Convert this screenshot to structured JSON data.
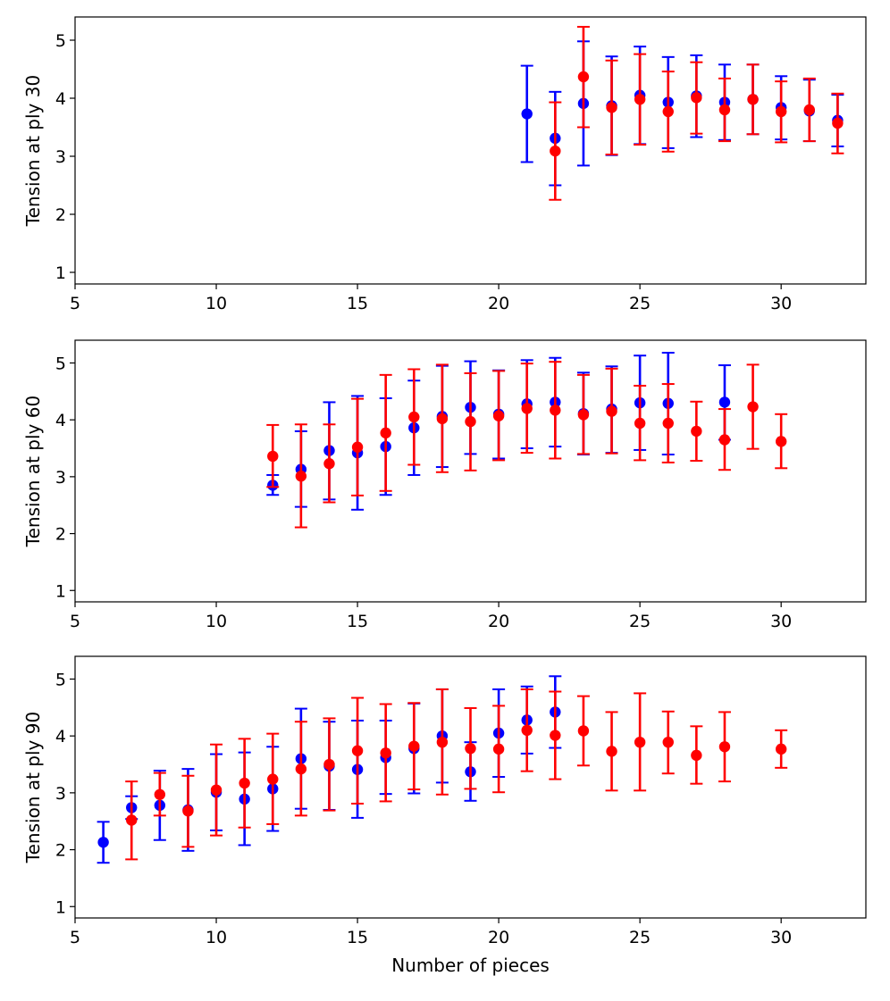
{
  "chart_data": [
    {
      "type": "scatter",
      "title": "",
      "xlabel": "",
      "ylabel": "Tension at ply 30",
      "xlim": [
        5,
        33
      ],
      "ylim": [
        0.8,
        5.4
      ],
      "xticks": [
        5,
        10,
        15,
        20,
        25,
        30
      ],
      "yticks": [
        1,
        2,
        3,
        4,
        5
      ],
      "series": [
        {
          "name": "blue",
          "color": "#0000ff",
          "points": [
            {
              "x": 21,
              "y": 3.73,
              "lo": 2.9,
              "hi": 4.56
            },
            {
              "x": 22,
              "y": 3.31,
              "lo": 2.5,
              "hi": 4.11
            },
            {
              "x": 23,
              "y": 3.91,
              "lo": 2.84,
              "hi": 4.98
            },
            {
              "x": 24,
              "y": 3.87,
              "lo": 3.02,
              "hi": 4.72
            },
            {
              "x": 25,
              "y": 4.05,
              "lo": 3.21,
              "hi": 4.89
            },
            {
              "x": 26,
              "y": 3.93,
              "lo": 3.14,
              "hi": 4.71
            },
            {
              "x": 27,
              "y": 4.04,
              "lo": 3.33,
              "hi": 4.74
            },
            {
              "x": 28,
              "y": 3.93,
              "lo": 3.28,
              "hi": 4.58
            },
            {
              "x": 29,
              "y": 3.98,
              "lo": 3.38,
              "hi": 4.58
            },
            {
              "x": 30,
              "y": 3.84,
              "lo": 3.29,
              "hi": 4.38
            },
            {
              "x": 31,
              "y": 3.78,
              "lo": 3.26,
              "hi": 4.32
            },
            {
              "x": 32,
              "y": 3.62,
              "lo": 3.17,
              "hi": 4.06
            }
          ]
        },
        {
          "name": "red",
          "color": "#ff0000",
          "points": [
            {
              "x": 22,
              "y": 3.09,
              "lo": 2.25,
              "hi": 3.93
            },
            {
              "x": 23,
              "y": 4.37,
              "lo": 3.5,
              "hi": 5.23
            },
            {
              "x": 24,
              "y": 3.84,
              "lo": 3.03,
              "hi": 4.65
            },
            {
              "x": 25,
              "y": 3.98,
              "lo": 3.2,
              "hi": 4.76
            },
            {
              "x": 26,
              "y": 3.77,
              "lo": 3.08,
              "hi": 4.46
            },
            {
              "x": 27,
              "y": 4.01,
              "lo": 3.39,
              "hi": 4.62
            },
            {
              "x": 28,
              "y": 3.8,
              "lo": 3.26,
              "hi": 4.34
            },
            {
              "x": 29,
              "y": 3.98,
              "lo": 3.38,
              "hi": 4.58
            },
            {
              "x": 30,
              "y": 3.77,
              "lo": 3.24,
              "hi": 4.29
            },
            {
              "x": 31,
              "y": 3.8,
              "lo": 3.26,
              "hi": 4.34
            },
            {
              "x": 32,
              "y": 3.57,
              "lo": 3.05,
              "hi": 4.08
            }
          ]
        }
      ]
    },
    {
      "type": "scatter",
      "title": "",
      "xlabel": "",
      "ylabel": "Tension at ply 60",
      "xlim": [
        5,
        33
      ],
      "ylim": [
        0.8,
        5.4
      ],
      "xticks": [
        5,
        10,
        15,
        20,
        25,
        30
      ],
      "yticks": [
        1,
        2,
        3,
        4,
        5
      ],
      "series": [
        {
          "name": "blue",
          "color": "#0000ff",
          "points": [
            {
              "x": 12,
              "y": 2.85,
              "lo": 2.68,
              "hi": 3.03
            },
            {
              "x": 13,
              "y": 3.13,
              "lo": 2.47,
              "hi": 3.8
            },
            {
              "x": 14,
              "y": 3.46,
              "lo": 2.6,
              "hi": 4.31
            },
            {
              "x": 15,
              "y": 3.42,
              "lo": 2.42,
              "hi": 4.42
            },
            {
              "x": 16,
              "y": 3.53,
              "lo": 2.68,
              "hi": 4.38
            },
            {
              "x": 17,
              "y": 3.86,
              "lo": 3.03,
              "hi": 4.69
            },
            {
              "x": 18,
              "y": 4.06,
              "lo": 3.17,
              "hi": 4.95
            },
            {
              "x": 19,
              "y": 4.22,
              "lo": 3.4,
              "hi": 5.03
            },
            {
              "x": 20,
              "y": 4.1,
              "lo": 3.32,
              "hi": 4.87
            },
            {
              "x": 21,
              "y": 4.28,
              "lo": 3.5,
              "hi": 5.05
            },
            {
              "x": 22,
              "y": 4.31,
              "lo": 3.53,
              "hi": 5.09
            },
            {
              "x": 23,
              "y": 4.11,
              "lo": 3.39,
              "hi": 4.83
            },
            {
              "x": 24,
              "y": 4.19,
              "lo": 3.42,
              "hi": 4.94
            },
            {
              "x": 25,
              "y": 4.3,
              "lo": 3.47,
              "hi": 5.13
            },
            {
              "x": 26,
              "y": 4.29,
              "lo": 3.39,
              "hi": 5.18
            },
            {
              "x": 28,
              "y": 4.31,
              "lo": 3.65,
              "hi": 4.96
            }
          ]
        },
        {
          "name": "red",
          "color": "#ff0000",
          "points": [
            {
              "x": 12,
              "y": 3.36,
              "lo": 2.82,
              "hi": 3.91
            },
            {
              "x": 13,
              "y": 3.01,
              "lo": 2.11,
              "hi": 3.92
            },
            {
              "x": 14,
              "y": 3.23,
              "lo": 2.55,
              "hi": 3.92
            },
            {
              "x": 15,
              "y": 3.52,
              "lo": 2.67,
              "hi": 4.37
            },
            {
              "x": 16,
              "y": 3.77,
              "lo": 2.75,
              "hi": 4.79
            },
            {
              "x": 17,
              "y": 4.05,
              "lo": 3.21,
              "hi": 4.89
            },
            {
              "x": 18,
              "y": 4.02,
              "lo": 3.08,
              "hi": 4.97
            },
            {
              "x": 19,
              "y": 3.97,
              "lo": 3.11,
              "hi": 4.82
            },
            {
              "x": 20,
              "y": 4.07,
              "lo": 3.29,
              "hi": 4.86
            },
            {
              "x": 21,
              "y": 4.2,
              "lo": 3.42,
              "hi": 4.99
            },
            {
              "x": 22,
              "y": 4.17,
              "lo": 3.32,
              "hi": 5.02
            },
            {
              "x": 23,
              "y": 4.09,
              "lo": 3.4,
              "hi": 4.79
            },
            {
              "x": 24,
              "y": 4.15,
              "lo": 3.41,
              "hi": 4.9
            },
            {
              "x": 25,
              "y": 3.94,
              "lo": 3.29,
              "hi": 4.6
            },
            {
              "x": 26,
              "y": 3.94,
              "lo": 3.25,
              "hi": 4.63
            },
            {
              "x": 27,
              "y": 3.8,
              "lo": 3.28,
              "hi": 4.32
            },
            {
              "x": 28,
              "y": 3.65,
              "lo": 3.12,
              "hi": 4.19
            },
            {
              "x": 29,
              "y": 4.23,
              "lo": 3.49,
              "hi": 4.97
            },
            {
              "x": 30,
              "y": 3.62,
              "lo": 3.15,
              "hi": 4.1
            }
          ]
        }
      ]
    },
    {
      "type": "scatter",
      "title": "",
      "xlabel": "Number of pieces",
      "ylabel": "Tension at ply 90",
      "xlim": [
        5,
        33
      ],
      "ylim": [
        0.8,
        5.4
      ],
      "xticks": [
        5,
        10,
        15,
        20,
        25,
        30
      ],
      "yticks": [
        1,
        2,
        3,
        4,
        5
      ],
      "series": [
        {
          "name": "blue",
          "color": "#0000ff",
          "points": [
            {
              "x": 6,
              "y": 2.13,
              "lo": 1.77,
              "hi": 2.49
            },
            {
              "x": 7,
              "y": 2.74,
              "lo": 2.54,
              "hi": 2.94
            },
            {
              "x": 8,
              "y": 2.78,
              "lo": 2.17,
              "hi": 3.39
            },
            {
              "x": 9,
              "y": 2.7,
              "lo": 1.98,
              "hi": 3.42
            },
            {
              "x": 10,
              "y": 3.01,
              "lo": 2.34,
              "hi": 3.68
            },
            {
              "x": 11,
              "y": 2.89,
              "lo": 2.08,
              "hi": 3.71
            },
            {
              "x": 12,
              "y": 3.07,
              "lo": 2.33,
              "hi": 3.81
            },
            {
              "x": 13,
              "y": 3.6,
              "lo": 2.72,
              "hi": 4.48
            },
            {
              "x": 14,
              "y": 3.47,
              "lo": 2.7,
              "hi": 4.25
            },
            {
              "x": 15,
              "y": 3.41,
              "lo": 2.56,
              "hi": 4.27
            },
            {
              "x": 16,
              "y": 3.62,
              "lo": 2.98,
              "hi": 4.27
            },
            {
              "x": 17,
              "y": 3.78,
              "lo": 2.99,
              "hi": 4.57
            },
            {
              "x": 18,
              "y": 4.0,
              "lo": 3.18,
              "hi": 4.82
            },
            {
              "x": 19,
              "y": 3.37,
              "lo": 2.86,
              "hi": 3.89
            },
            {
              "x": 20,
              "y": 4.05,
              "lo": 3.28,
              "hi": 4.82
            },
            {
              "x": 21,
              "y": 4.28,
              "lo": 3.69,
              "hi": 4.87
            },
            {
              "x": 22,
              "y": 4.42,
              "lo": 3.79,
              "hi": 5.05
            }
          ]
        },
        {
          "name": "red",
          "color": "#ff0000",
          "points": [
            {
              "x": 7,
              "y": 2.52,
              "lo": 1.83,
              "hi": 3.2
            },
            {
              "x": 8,
              "y": 2.97,
              "lo": 2.6,
              "hi": 3.35
            },
            {
              "x": 9,
              "y": 2.68,
              "lo": 2.05,
              "hi": 3.3
            },
            {
              "x": 10,
              "y": 3.05,
              "lo": 2.25,
              "hi": 3.85
            },
            {
              "x": 11,
              "y": 3.17,
              "lo": 2.39,
              "hi": 3.95
            },
            {
              "x": 12,
              "y": 3.24,
              "lo": 2.45,
              "hi": 4.04
            },
            {
              "x": 13,
              "y": 3.42,
              "lo": 2.6,
              "hi": 4.25
            },
            {
              "x": 14,
              "y": 3.5,
              "lo": 2.69,
              "hi": 4.31
            },
            {
              "x": 15,
              "y": 3.74,
              "lo": 2.81,
              "hi": 4.67
            },
            {
              "x": 16,
              "y": 3.7,
              "lo": 2.85,
              "hi": 4.56
            },
            {
              "x": 17,
              "y": 3.82,
              "lo": 3.06,
              "hi": 4.58
            },
            {
              "x": 18,
              "y": 3.89,
              "lo": 2.97,
              "hi": 4.82
            },
            {
              "x": 19,
              "y": 3.78,
              "lo": 3.07,
              "hi": 4.49
            },
            {
              "x": 20,
              "y": 3.77,
              "lo": 3.01,
              "hi": 4.53
            },
            {
              "x": 21,
              "y": 4.1,
              "lo": 3.38,
              "hi": 4.82
            },
            {
              "x": 22,
              "y": 4.01,
              "lo": 3.24,
              "hi": 4.78
            },
            {
              "x": 23,
              "y": 4.09,
              "lo": 3.48,
              "hi": 4.7
            },
            {
              "x": 24,
              "y": 3.73,
              "lo": 3.04,
              "hi": 4.42
            },
            {
              "x": 25,
              "y": 3.89,
              "lo": 3.04,
              "hi": 4.75
            },
            {
              "x": 26,
              "y": 3.89,
              "lo": 3.34,
              "hi": 4.43
            },
            {
              "x": 27,
              "y": 3.66,
              "lo": 3.16,
              "hi": 4.17
            },
            {
              "x": 28,
              "y": 3.81,
              "lo": 3.2,
              "hi": 4.42
            },
            {
              "x": 30,
              "y": 3.77,
              "lo": 3.44,
              "hi": 4.1
            }
          ]
        }
      ]
    }
  ]
}
